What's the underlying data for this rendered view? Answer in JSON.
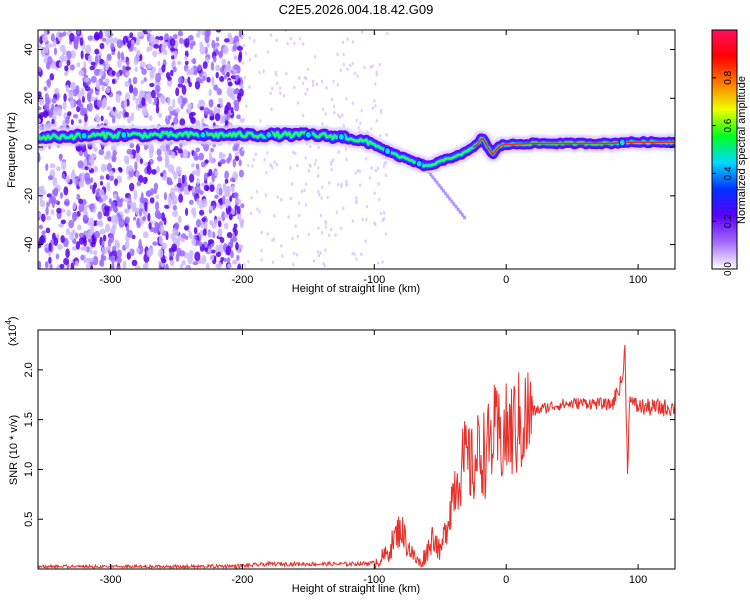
{
  "title": "C2E5.2026.004.18.42.G09",
  "colors": {
    "snr_line": "#e8302a",
    "ridge_outer": "#6a00ff",
    "ridge_mid": "#00c8ff",
    "ridge_core": "#ff2a00",
    "noise": "#7a3cff"
  },
  "chart_data": [
    {
      "type": "heatmap",
      "name": "spectrogram",
      "xlabel": "Height of straight line (km)",
      "ylabel": "Frequency (Hz)",
      "xlim": [
        -355,
        128
      ],
      "ylim": [
        -50,
        48
      ],
      "xticks": [
        {
          "value": -300,
          "label": "-300"
        },
        {
          "value": -200,
          "label": "-200"
        },
        {
          "value": -100,
          "label": "-100"
        },
        {
          "value": 0,
          "label": "0"
        },
        {
          "value": 100,
          "label": "100"
        }
      ],
      "yticks": [
        {
          "value": -40,
          "label": "-40"
        },
        {
          "value": -20,
          "label": "-20"
        },
        {
          "value": 0,
          "label": "0"
        },
        {
          "value": 20,
          "label": "20"
        },
        {
          "value": 40,
          "label": "40"
        }
      ],
      "ridge": {
        "x": [
          -355,
          -300,
          -250,
          -200,
          -150,
          -120,
          -100,
          -85,
          -70,
          -60,
          -50,
          -40,
          -30,
          -22,
          -18,
          -14,
          -10,
          -6,
          -2,
          0,
          20,
          60,
          80,
          90,
          100,
          128
        ],
        "y": [
          4,
          5,
          5,
          5,
          5,
          4,
          1,
          -3,
          -6,
          -8,
          -6,
          -4,
          -2,
          1,
          4,
          0,
          -3,
          0,
          1,
          1,
          1.5,
          1.5,
          1.5,
          2,
          2,
          2
        ]
      },
      "colorbar": {
        "label": "Normalized spectral amplitude",
        "range": [
          0,
          1
        ],
        "ticks": [
          {
            "value": 0.0,
            "label": "0.0"
          },
          {
            "value": 0.2,
            "label": "0.2"
          },
          {
            "value": 0.4,
            "label": "0.4"
          },
          {
            "value": 0.6,
            "label": "0.6"
          },
          {
            "value": 0.8,
            "label": "0.8"
          }
        ],
        "stops": [
          "#ffffff",
          "#a56bff",
          "#5b00ff",
          "#0030ff",
          "#00d8ff",
          "#00ff20",
          "#f0ff00",
          "#ff7a00",
          "#ff0000",
          "#ff1060"
        ]
      }
    },
    {
      "type": "line",
      "name": "snr",
      "xlabel": "Height of straight line (km)",
      "ylabel": "SNR (10 * v/v)",
      "exponent_label": "(x10",
      "exponent_power": "4",
      "exponent_close": ")",
      "xlim": [
        -355,
        128
      ],
      "ylim": [
        0,
        2.4
      ],
      "xticks": [
        {
          "value": -300,
          "label": "-300"
        },
        {
          "value": -200,
          "label": "-200"
        },
        {
          "value": -100,
          "label": "-100"
        },
        {
          "value": 0,
          "label": "0"
        },
        {
          "value": 100,
          "label": "100"
        }
      ],
      "yticks": [
        {
          "value": 0.5,
          "label": "0.5"
        },
        {
          "value": 1.0,
          "label": "1.0"
        },
        {
          "value": 1.5,
          "label": "1.5"
        },
        {
          "value": 2.0,
          "label": "2.0"
        }
      ],
      "series": [
        {
          "name": "SNR",
          "x": [
            -355,
            -250,
            -200,
            -180,
            -150,
            -120,
            -100,
            -90,
            -85,
            -80,
            -75,
            -70,
            -65,
            -60,
            -55,
            -50,
            -45,
            -40,
            -35,
            -30,
            -25,
            -20,
            -15,
            -10,
            -5,
            0,
            5,
            10,
            15,
            20,
            25,
            30,
            40,
            50,
            60,
            70,
            80,
            85,
            88,
            90,
            92,
            94,
            96,
            100,
            110,
            128
          ],
          "y": [
            0.02,
            0.02,
            0.03,
            0.05,
            0.05,
            0.05,
            0.06,
            0.15,
            0.3,
            0.42,
            0.25,
            0.12,
            0.05,
            0.18,
            0.35,
            0.15,
            0.45,
            0.8,
            1.0,
            1.1,
            1.0,
            1.2,
            1.15,
            1.35,
            1.3,
            1.35,
            1.4,
            1.45,
            1.5,
            1.58,
            1.6,
            1.62,
            1.65,
            1.66,
            1.67,
            1.66,
            1.65,
            1.8,
            1.9,
            2.2,
            1.0,
            1.8,
            1.65,
            1.63,
            1.62,
            1.62
          ]
        }
      ]
    }
  ]
}
